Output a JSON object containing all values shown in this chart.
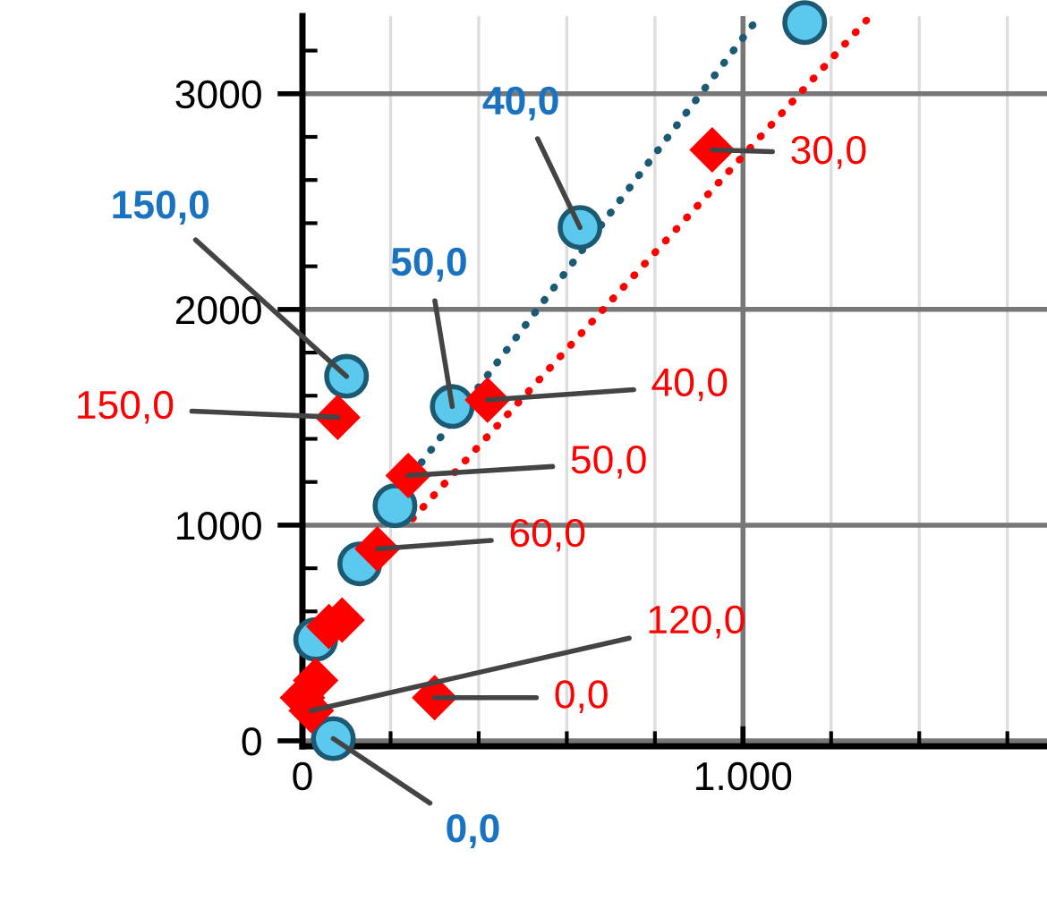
{
  "chart_data": {
    "type": "scatter",
    "xlim": [
      0,
      1690
    ],
    "ylim": [
      -25,
      3360
    ],
    "xticks": [
      0,
      {
        "value": 200,
        "label": null
      },
      {
        "value": 400,
        "label": null
      },
      {
        "value": 600,
        "label": null
      },
      {
        "value": 800,
        "label": null
      },
      {
        "value": 1000,
        "label": "1.000"
      },
      {
        "value": 1200,
        "label": null
      },
      {
        "value": 1400,
        "label": null
      },
      {
        "value": 1600,
        "label": null
      }
    ],
    "yticks": [
      0,
      {
        "value": 200,
        "label": null
      },
      {
        "value": 400,
        "label": null
      },
      {
        "value": 600,
        "label": null
      },
      {
        "value": 800,
        "label": null
      },
      1000,
      {
        "value": 1200,
        "label": null
      },
      {
        "value": 1400,
        "label": null
      },
      {
        "value": 1600,
        "label": null
      },
      {
        "value": 1800,
        "label": null
      },
      2000,
      {
        "value": 2200,
        "label": null
      },
      {
        "value": 2400,
        "label": null
      },
      {
        "value": 2600,
        "label": null
      },
      {
        "value": 2800,
        "label": null
      },
      3000,
      {
        "value": 3200,
        "label": null
      }
    ],
    "grid": true,
    "series": [
      {
        "type": "line",
        "color": "#1b5a72",
        "line_style": "dotted",
        "marker": "none",
        "x": [
          270,
          1030
        ],
        "values": [
          1290,
          3340
        ]
      },
      {
        "type": "line",
        "color": "#ff0000",
        "line_style": "dotted",
        "marker": "none",
        "x": [
          250,
          1280
        ],
        "values": [
          1030,
          3340
        ]
      },
      {
        "color": "#5bc8ee",
        "marker": "circle",
        "x": [
          1140,
          630,
          100,
          340,
          210,
          130,
          30,
          70
        ],
        "values": [
          3330,
          2380,
          1690,
          1550,
          1090,
          820,
          470,
          10
        ]
      },
      {
        "color": "#ff0000",
        "marker": "diamond",
        "x": [
          930,
          420,
          80,
          240,
          170,
          300,
          90,
          60,
          30,
          0,
          20
        ],
        "values": [
          2740,
          1580,
          1500,
          1230,
          890,
          200,
          560,
          530,
          280,
          200,
          140
        ]
      }
    ],
    "annotations": [
      {
        "text": "0,0",
        "x": 70,
        "y": 10
      },
      {
        "text": "30,0",
        "x": 930,
        "y": 2740
      },
      {
        "text": "40,0",
        "x": 420,
        "y": 1580
      },
      {
        "text": "150,0",
        "x": 80,
        "y": 1500
      },
      {
        "text": "50,0",
        "x": 240,
        "y": 1230
      },
      {
        "text": "60,0",
        "x": 170,
        "y": 890
      },
      {
        "text": "0,0",
        "x": 300,
        "y": 200
      },
      {
        "text": "120,0",
        "x": 20,
        "y": 140
      },
      {
        "text": "40,0",
        "x": 630,
        "y": 2380
      },
      {
        "text": "150,0",
        "x": 100,
        "y": 1690
      },
      {
        "text": "50,0",
        "x": 340,
        "y": 1550
      }
    ]
  }
}
